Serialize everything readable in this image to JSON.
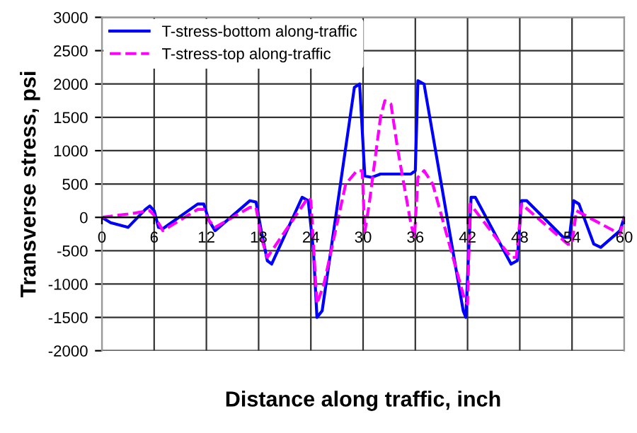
{
  "chart_data": {
    "type": "line",
    "xlabel": "Distance along traffic, inch",
    "ylabel": "Transverse stress, psi",
    "xlim": [
      0,
      60
    ],
    "xticks": [
      0,
      6,
      12,
      18,
      24,
      30,
      36,
      42,
      48,
      54,
      60
    ],
    "ylim": [
      -2000,
      3000
    ],
    "yticks": [
      -2000,
      -1500,
      -1000,
      -500,
      0,
      500,
      1000,
      1500,
      2000,
      2500,
      3000
    ],
    "grid": true,
    "legend": "top left",
    "series": [
      {
        "name": "T-stress-bottom along-traffic",
        "color": "#0000ff",
        "line_style": "solid",
        "x": [
          0,
          1,
          3,
          5,
          5.5,
          6,
          6.5,
          7,
          11,
          11.7,
          12.3,
          13,
          17,
          17.7,
          18.3,
          19,
          19.5,
          23,
          23.7,
          24.3,
          24.7,
          25.3,
          29,
          29.6,
          30.2,
          31,
          32,
          34,
          35.5,
          36,
          36.3,
          37,
          41.5,
          41.8,
          42.4,
          42.9,
          47,
          47.7,
          48.2,
          48.8,
          53,
          53.7,
          54.2,
          54.8,
          56.5,
          57.3,
          59.5,
          60
        ],
        "values": [
          0,
          -80,
          -150,
          120,
          170,
          100,
          -150,
          -170,
          200,
          200,
          -50,
          -200,
          250,
          230,
          -200,
          -650,
          -700,
          300,
          250,
          -500,
          -1500,
          -1400,
          1950,
          2000,
          620,
          600,
          650,
          650,
          650,
          700,
          2050,
          2000,
          -1400,
          -1500,
          300,
          300,
          -700,
          -650,
          250,
          250,
          -300,
          -300,
          250,
          200,
          -400,
          -450,
          -200,
          0
        ]
      },
      {
        "name": "T-stress-top along-traffic",
        "color": "#ff00ff",
        "line_style": "dashed",
        "x": [
          0,
          3,
          5.5,
          6,
          7,
          11,
          11.7,
          12.3,
          13,
          17,
          17.7,
          18.3,
          19,
          23.7,
          24,
          24.7,
          25.5,
          28,
          29.3,
          29.9,
          30.2,
          30.7,
          32,
          32.5,
          33.2,
          34,
          35.5,
          35.9,
          36.3,
          37,
          38,
          41.7,
          42,
          42.3,
          47,
          47.6,
          48.2,
          53.5,
          54,
          54.5,
          59.5,
          60
        ],
        "values": [
          0,
          50,
          100,
          30,
          -200,
          120,
          120,
          -50,
          -150,
          150,
          150,
          -300,
          -600,
          300,
          250,
          -1300,
          -1000,
          500,
          700,
          700,
          -220,
          200,
          1500,
          1750,
          1700,
          1000,
          -100,
          -300,
          600,
          700,
          500,
          -1250,
          -1300,
          200,
          -600,
          -600,
          200,
          -400,
          -400,
          100,
          -250,
          0
        ]
      }
    ]
  }
}
